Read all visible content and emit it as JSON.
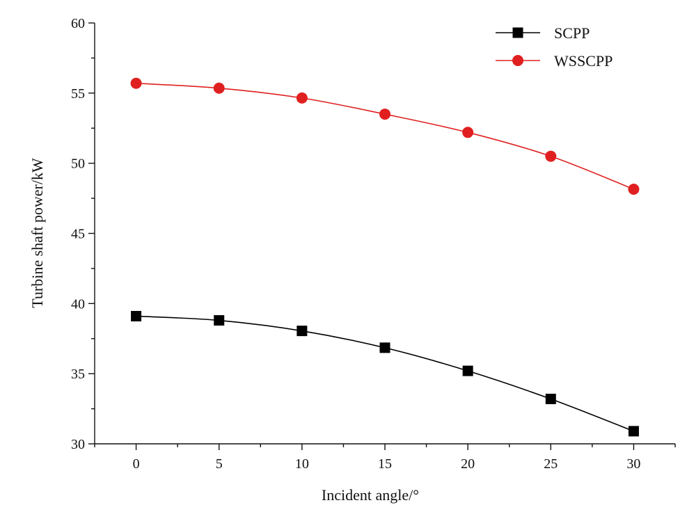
{
  "chart_data": {
    "type": "line",
    "title": "",
    "xlabel": "Incident angle/°",
    "ylabel": "Turbine shaft power/kW",
    "x": [
      0,
      5,
      10,
      15,
      20,
      25,
      30
    ],
    "xlim": [
      -2.5,
      32.5
    ],
    "ylim": [
      30,
      60
    ],
    "x_ticks": [
      "0",
      "5",
      "10",
      "15",
      "20",
      "25",
      "30"
    ],
    "y_ticks": [
      "30",
      "35",
      "40",
      "45",
      "50",
      "55",
      "60"
    ],
    "grid": false,
    "legend_position": "top-right",
    "series": [
      {
        "name": "SCPP",
        "values": [
          39.1,
          38.8,
          38.05,
          36.85,
          35.2,
          33.2,
          30.9
        ],
        "color": "#000000",
        "marker": "square"
      },
      {
        "name": "WSSCPP",
        "values": [
          55.7,
          55.35,
          54.65,
          53.5,
          52.2,
          50.5,
          48.15
        ],
        "color": "#e02020",
        "marker": "circle"
      }
    ]
  }
}
